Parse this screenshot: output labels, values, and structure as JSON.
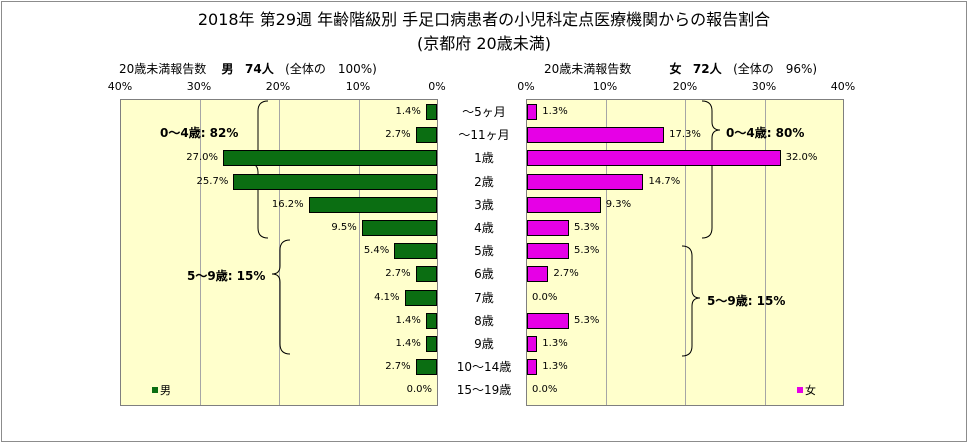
{
  "title": "2018年 第29週 年齢階級別 手足口病患者の小児科定点医療機関からの報告割合",
  "subtitle": "(京都府 20歳未満)",
  "left_panel": {
    "axis_label": "20歳未満報告数",
    "sex": "男",
    "count": "74人",
    "share": "(全体の　100%)",
    "ticks": [
      "40%",
      "30%",
      "20%",
      "10%",
      "0%"
    ],
    "group_labels": [
      "0～4歳: 82%",
      "5～9歳: 15%"
    ],
    "legend": "男",
    "color": "#0b6e12"
  },
  "right_panel": {
    "axis_label": "20歳未満報告数",
    "sex": "女",
    "count": "72人",
    "share": "(全体の　96%)",
    "ticks": [
      "0%",
      "10%",
      "20%",
      "30%",
      "40%"
    ],
    "group_labels": [
      "0～4歳: 80%",
      "5～9歳: 15%"
    ],
    "legend": "女",
    "color": "#e600e6"
  },
  "chart_data": {
    "type": "bar",
    "categories": [
      "～5ヶ月",
      "～11ヶ月",
      "1歳",
      "2歳",
      "3歳",
      "4歳",
      "5歳",
      "6歳",
      "7歳",
      "8歳",
      "9歳",
      "10～14歳",
      "15～19歳"
    ],
    "series": [
      {
        "name": "男",
        "values": [
          1.4,
          2.7,
          27.0,
          25.7,
          16.2,
          9.5,
          5.4,
          2.7,
          4.1,
          1.4,
          1.4,
          2.7,
          0.0
        ],
        "labels": [
          "1.4%",
          "2.7%",
          "27.0%",
          "25.7%",
          "16.2%",
          "9.5%",
          "5.4%",
          "2.7%",
          "4.1%",
          "1.4%",
          "1.4%",
          "2.7%",
          "0.0%"
        ]
      },
      {
        "name": "女",
        "values": [
          1.3,
          17.3,
          32.0,
          14.7,
          9.3,
          5.3,
          5.3,
          2.7,
          0.0,
          5.3,
          1.3,
          1.3,
          0.0
        ],
        "labels": [
          "1.3%",
          "17.3%",
          "32.0%",
          "14.7%",
          "9.3%",
          "5.3%",
          "5.3%",
          "2.7%",
          "0.0%",
          "5.3%",
          "1.3%",
          "1.3%",
          "0.0%"
        ]
      }
    ],
    "xlim": [
      0,
      40
    ],
    "unit": "%",
    "grid": true,
    "legend_position": "bottom-left / bottom-right"
  }
}
